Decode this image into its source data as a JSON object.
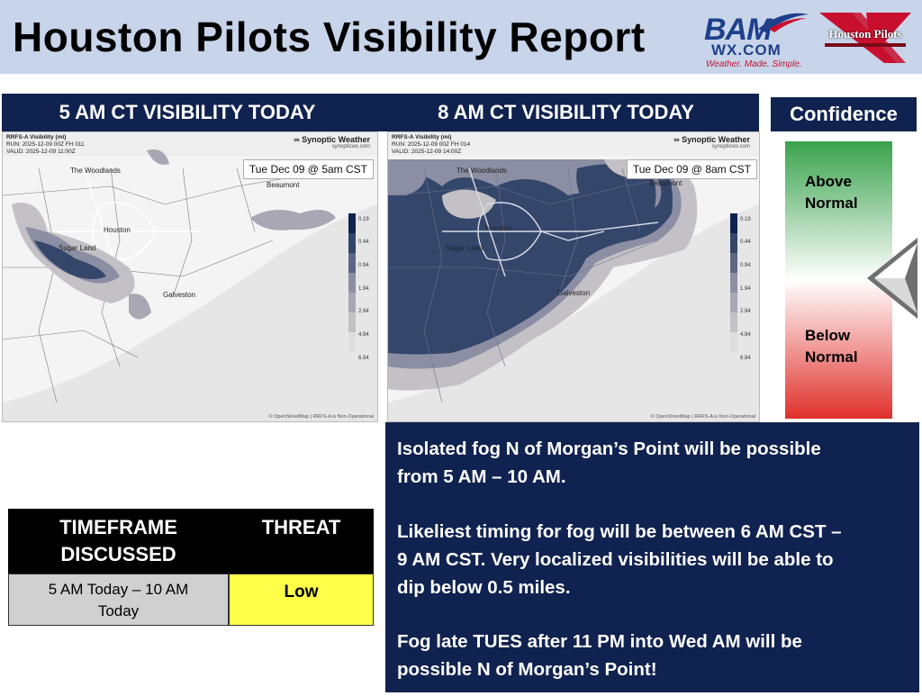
{
  "title": "Houston Pilots Visibility Report",
  "logos": {
    "bam_word": "BAM",
    "bam_site": "WX.COM",
    "bam_tagline": "Weather. Made. Simple.",
    "houston_pilots": "Houston Pilots"
  },
  "map_left": {
    "heading": "5 AM CT VISIBILITY TODAY",
    "meta_line1": "RRFS-A Visibility (mi)",
    "meta_line2": "RUN: 2025-12-09 00Z FH 011",
    "meta_line3": "VALID: 2025-12-09 11:00Z",
    "brand": "Synoptic Weather",
    "brand_sub": "synopticwx.com",
    "stamp": "Tue Dec 09 @ 5am CST",
    "cities": {
      "woodlands": "The Woodlands",
      "beaumont": "Beaumont",
      "houston": "Houston",
      "sugarland": "Sugar Land",
      "galveston": "Galveston"
    },
    "credit": "© OpenStreetMap | RRFS-A is Non-Operational"
  },
  "map_right": {
    "heading": "8 AM CT VISIBILITY TODAY",
    "meta_line1": "RRFS-A Visibility (mi)",
    "meta_line2": "RUN: 2025-12-09 00Z FH 014",
    "meta_line3": "VALID: 2025-12-09 14:00Z",
    "brand": "Synoptic Weather",
    "brand_sub": "synopticwx.com",
    "stamp": "Tue Dec 09 @ 8am CST",
    "cities": {
      "woodlands": "The Woodlands",
      "beaumont": "Beaumont",
      "houston": "Houston",
      "sugarland": "Sugar Land",
      "galveston": "Galveston"
    },
    "credit": "© OpenStreetMap | RRFS-A is Non-Operational"
  },
  "legend_values": [
    "0.19",
    "0.44",
    "0.94",
    "1.94",
    "2.94",
    "4.94",
    "6.94"
  ],
  "legend_colors": [
    "#10224f",
    "#35466b",
    "#5b6785",
    "#8c8fa3",
    "#a9a7b3",
    "#c4c1c6",
    "#e0dddd"
  ],
  "confidence": {
    "heading": "Confidence",
    "above_1": "Above",
    "above_2": "Normal",
    "below_1": "Below",
    "below_2": "Normal",
    "level": "slightly below normal"
  },
  "table": {
    "col1_header_1": "TIMEFRAME",
    "col1_header_2": "DISCUSSED",
    "col2_header": "THREAT",
    "timeframe_1": "5 AM Today – 10 AM",
    "timeframe_2": "Today",
    "threat": "Low"
  },
  "discussion": {
    "p1_1": "Isolated fog N of Morgan’s Point will be possible",
    "p1_2": "from 5 AM – 10 AM.",
    "p2_1": "Likeliest timing for fog will be between 6 AM CST –",
    "p2_2": "9 AM CST. Very localized visibilities will be able to",
    "p2_3": "dip below 0.5 miles.",
    "p3_1": "Fog late TUES after 11 PM into Wed AM will be",
    "p3_2": "possible N of Morgan’s Point!"
  },
  "colors": {
    "navy": "#10224f",
    "header_bg": "#c7d4ea",
    "threat_low": "#ffff4a",
    "conf_top": "#39a24c",
    "conf_bottom": "#e0302b"
  }
}
